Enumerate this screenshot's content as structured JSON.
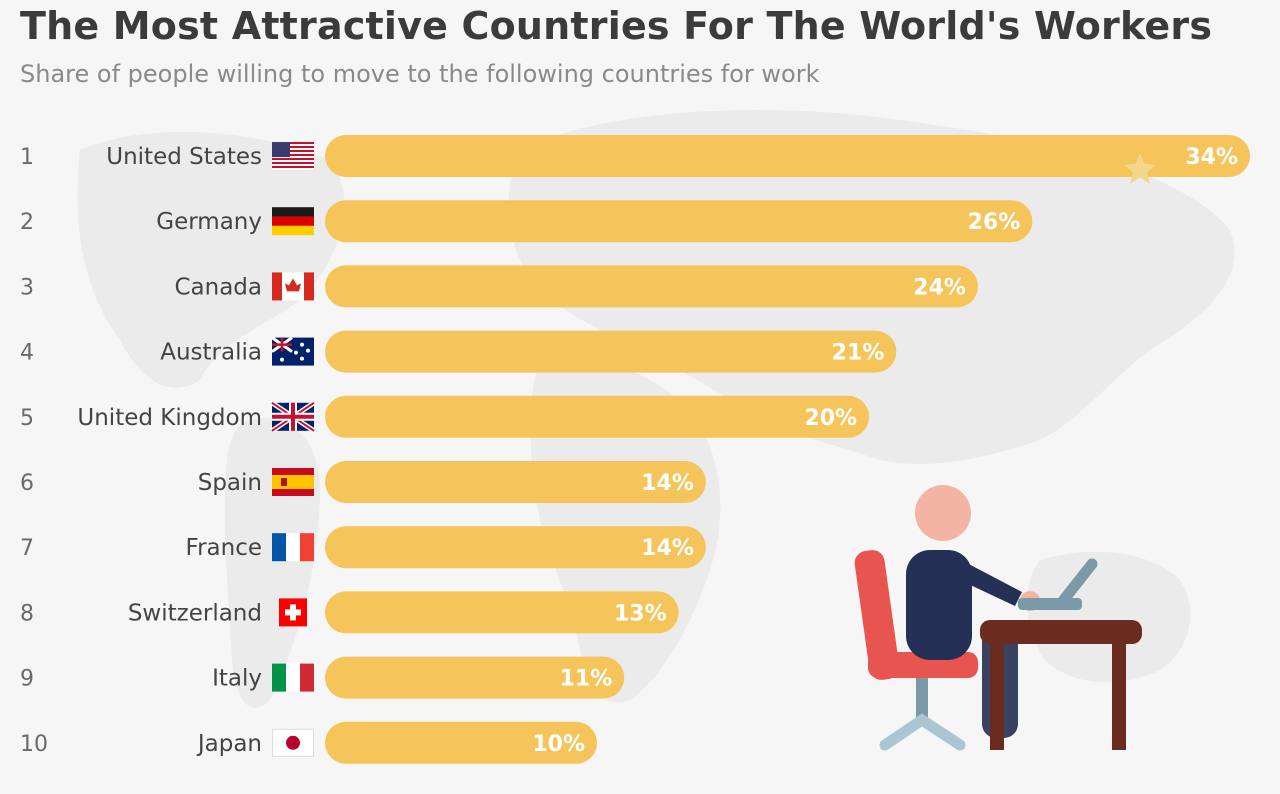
{
  "title": "The Most Attractive Countries For The World's Workers",
  "subtitle": "Share of people willing to move to the following countries for work",
  "colors": {
    "bar": "#f5c55b",
    "background": "#f6f6f6",
    "map": "#ebebeb",
    "star": "#f2d68a"
  },
  "chart_data": {
    "type": "bar",
    "orientation": "horizontal",
    "title": "The Most Attractive Countries For The World's Workers",
    "subtitle": "Share of people willing to move to the following countries for work",
    "xlim": [
      0,
      34
    ],
    "unit": "%",
    "categories": [
      "United States",
      "Germany",
      "Canada",
      "Australia",
      "United Kingdom",
      "Spain",
      "France",
      "Switzerland",
      "Italy",
      "Japan"
    ],
    "values": [
      34,
      26,
      24,
      21,
      20,
      14,
      14,
      13,
      11,
      10
    ],
    "ranks": [
      "1",
      "2",
      "3",
      "4",
      "5",
      "6",
      "7",
      "8",
      "9",
      "10"
    ],
    "value_labels": [
      "34%",
      "26%",
      "24%",
      "21%",
      "20%",
      "14%",
      "14%",
      "13%",
      "11%",
      "10%"
    ],
    "flag_icons": [
      "us-flag-icon",
      "germany-flag-icon",
      "canada-flag-icon",
      "australia-flag-icon",
      "uk-flag-icon",
      "spain-flag-icon",
      "france-flag-icon",
      "switzerland-flag-icon",
      "italy-flag-icon",
      "japan-flag-icon"
    ],
    "grid": false,
    "legend": "none",
    "highlight_icon": "star-icon"
  },
  "illustration": {
    "icon": "person-working-at-laptop-icon"
  }
}
